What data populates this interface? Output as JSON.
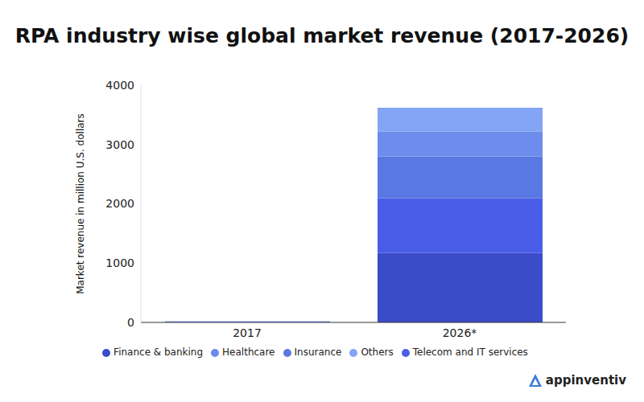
{
  "chart_data": {
    "type": "bar",
    "title": "RPA industry wise global market revenue (2017-2026)",
    "y_label": "Market revenue in million U.S. dollars",
    "categories": [
      "2017",
      "2026*"
    ],
    "series": [
      {
        "name": "Finance & banking",
        "color": "#3a4cc8",
        "values": [
          8,
          1170
        ]
      },
      {
        "name": "Telecom and IT services",
        "color": "#4a5de8",
        "values": [
          4,
          920
        ]
      },
      {
        "name": "Insurance",
        "color": "#5a78e2",
        "values": [
          3,
          710
        ]
      },
      {
        "name": "Healthcare",
        "color": "#6d8ceb",
        "values": [
          2,
          420
        ]
      },
      {
        "name": "Others",
        "color": "#84a4f5",
        "values": [
          3,
          400
        ]
      }
    ],
    "ylim": [
      0,
      4000
    ],
    "yticks": [
      0,
      1000,
      2000,
      3000,
      4000
    ],
    "stacked": true,
    "grid": false,
    "legend": "bottom",
    "annotations": [
      "appinventiv"
    ]
  }
}
